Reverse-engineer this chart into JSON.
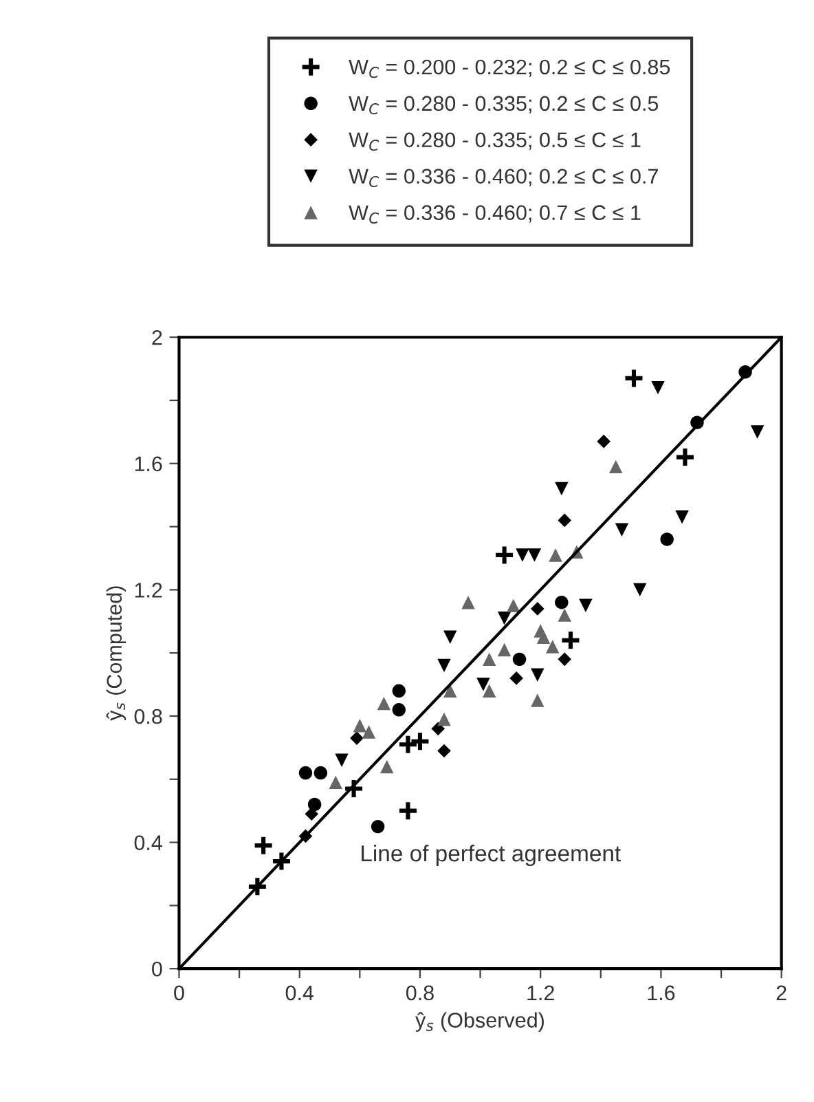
{
  "chart_data": {
    "type": "scatter",
    "xlabel": "ŷ$_{s}$ (Observed)",
    "ylabel": "ŷ$_{s}$ (Computed)",
    "xlim": [
      0,
      2
    ],
    "ylim": [
      0,
      2
    ],
    "xticks": [
      0,
      {
        "value": 0.2,
        "label": null
      },
      0.4,
      {
        "value": 0.6,
        "label": null
      },
      0.8,
      {
        "value": 1.0,
        "label": null
      },
      1.2,
      {
        "value": 1.4,
        "label": null
      },
      1.6,
      {
        "value": 1.8,
        "label": null
      },
      2
    ],
    "yticks": [
      0,
      {
        "value": 0.2,
        "label": null
      },
      0.4,
      {
        "value": 0.6,
        "label": null
      },
      0.8,
      {
        "value": 1.0,
        "label": null
      },
      1.2,
      {
        "value": 1.4,
        "label": null
      },
      1.6,
      {
        "value": 1.8,
        "label": null
      },
      2
    ],
    "grid": false,
    "legend": "top",
    "annotations": [
      "Line of perfect agreement"
    ],
    "series": [
      {
        "name": "W$_{C}$ = 0.200 - 0.232; 0.2 ≤ C ≤ 0.85",
        "color": "#000000",
        "marker": "cross",
        "x": [
          1.51,
          1.68,
          1.08,
          1.3,
          0.76,
          0.8,
          0.58,
          0.76,
          0.28,
          0.34,
          0.26
        ],
        "values": [
          1.87,
          1.62,
          1.31,
          1.04,
          0.71,
          0.72,
          0.57,
          0.5,
          0.39,
          0.34,
          0.26
        ]
      },
      {
        "name": "W$_{C}$ = 0.280 - 0.335; 0.2 ≤ C ≤ 0.5",
        "color": "#000000",
        "marker": "circle",
        "x": [
          1.88,
          1.72,
          1.62,
          1.27,
          1.13,
          0.73,
          0.73,
          0.42,
          0.47,
          0.45,
          0.66
        ],
        "values": [
          1.89,
          1.73,
          1.36,
          1.16,
          0.98,
          0.88,
          0.82,
          0.62,
          0.62,
          0.52,
          0.45
        ]
      },
      {
        "name": "W$_{C}$ = 0.280 - 0.335; 0.5 ≤ C ≤ 1",
        "color": "#000000",
        "marker": "diamond",
        "x": [
          1.41,
          1.28,
          1.19,
          1.12,
          1.28,
          0.86,
          0.88,
          0.59,
          0.44,
          0.42
        ],
        "values": [
          1.67,
          1.42,
          1.14,
          0.92,
          0.98,
          0.76,
          0.69,
          0.73,
          0.49,
          0.42
        ]
      },
      {
        "name": "W$_{C}$ = 0.336 - 0.460; 0.2 ≤ C ≤ 0.7",
        "color": "#000000",
        "marker": "triangle-down",
        "x": [
          1.59,
          1.92,
          1.27,
          1.67,
          1.47,
          1.14,
          1.18,
          1.53,
          1.35,
          1.08,
          0.9,
          0.88,
          1.19,
          1.01,
          0.54
        ],
        "values": [
          1.84,
          1.7,
          1.52,
          1.43,
          1.39,
          1.31,
          1.31,
          1.2,
          1.15,
          1.11,
          1.05,
          0.96,
          0.93,
          0.9,
          0.66
        ]
      },
      {
        "name": "W$_{C}$ = 0.336 - 0.460; 0.7 ≤ C ≤ 1",
        "color": "#666666",
        "marker": "triangle",
        "x": [
          1.45,
          1.25,
          1.32,
          0.96,
          1.11,
          1.28,
          1.2,
          1.08,
          1.03,
          1.21,
          1.24,
          1.03,
          1.19,
          0.68,
          0.88,
          0.9,
          0.6,
          0.63,
          0.52,
          0.69
        ],
        "values": [
          1.59,
          1.31,
          1.32,
          1.16,
          1.15,
          1.12,
          1.07,
          1.01,
          0.98,
          1.05,
          1.02,
          0.88,
          0.85,
          0.84,
          0.79,
          0.88,
          0.77,
          0.75,
          0.59,
          0.64
        ]
      },
      {
        "type": "line",
        "color": "#000000",
        "x": [
          0,
          2
        ],
        "values": [
          0,
          2
        ]
      }
    ]
  }
}
